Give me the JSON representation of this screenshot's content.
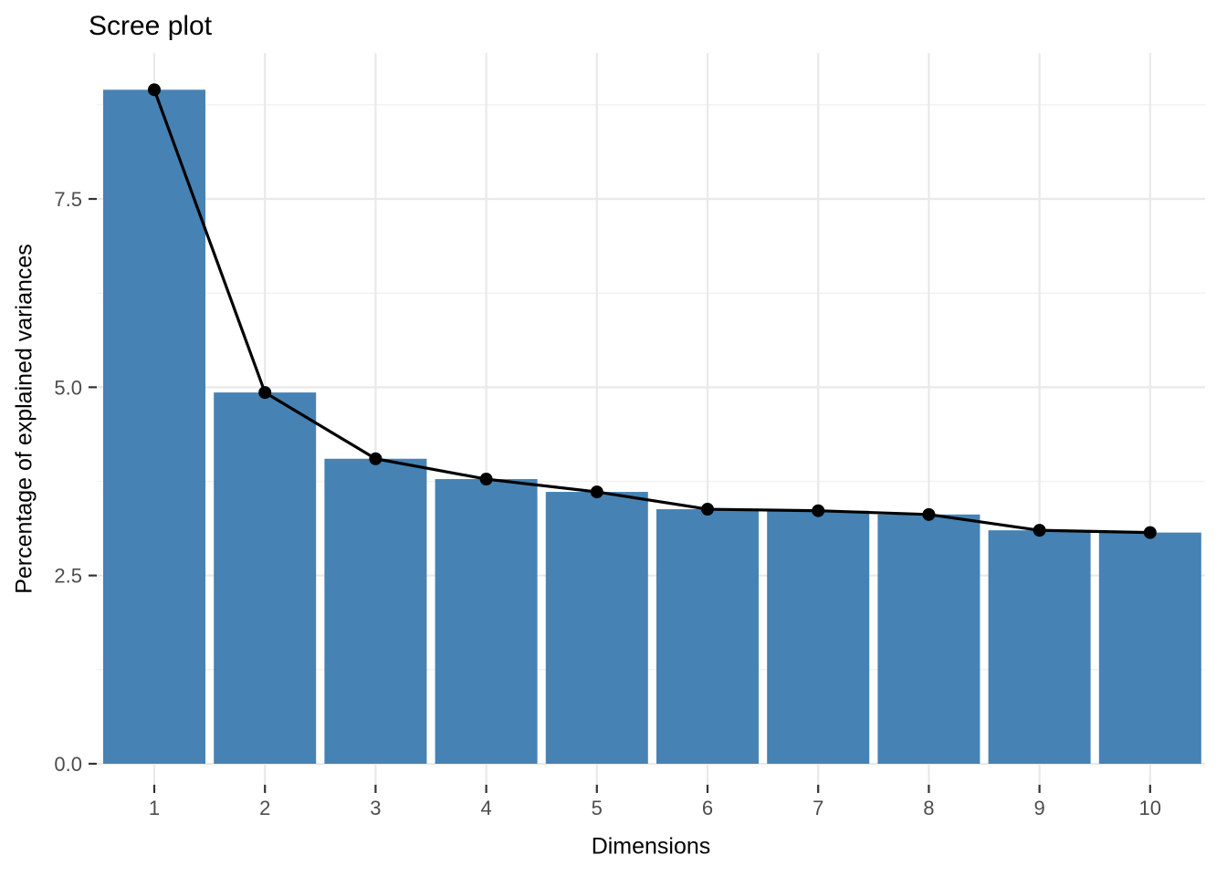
{
  "chart_data": {
    "type": "bar",
    "line_overlay": true,
    "title": "Scree plot",
    "xlabel": "Dimensions",
    "ylabel": "Percentage of explained variances",
    "categories": [
      "1",
      "2",
      "3",
      "4",
      "5",
      "6",
      "7",
      "8",
      "9",
      "10"
    ],
    "values": [
      8.95,
      4.93,
      4.05,
      3.78,
      3.61,
      3.38,
      3.36,
      3.31,
      3.1,
      3.07
    ],
    "series": [
      {
        "name": "percentage of explained variances (bars)",
        "values": [
          8.95,
          4.93,
          4.05,
          3.78,
          3.61,
          3.38,
          3.36,
          3.31,
          3.1,
          3.07
        ]
      },
      {
        "name": "percentage of explained variances (line)",
        "values": [
          8.95,
          4.93,
          4.05,
          3.78,
          3.61,
          3.38,
          3.36,
          3.31,
          3.1,
          3.07
        ]
      }
    ],
    "y_ticks": [
      {
        "value": 0.0,
        "label": "0.0"
      },
      {
        "value": 2.5,
        "label": "2.5"
      },
      {
        "value": 5.0,
        "label": "5.0"
      },
      {
        "value": 7.5,
        "label": "7.5"
      }
    ],
    "y_minor_gridlines": [
      1.25,
      3.75,
      6.25,
      8.75
    ],
    "ylim": [
      -0.28,
      9.44
    ],
    "grid": "on",
    "legend": "none",
    "colors": {
      "bar_fill": "#4682B4",
      "line": "#000000",
      "point": "#000000",
      "grid_major": "#E9E9E9",
      "grid_minor": "#F2F2F2",
      "tick_mark": "#333333",
      "tick_label": "#4D4D4D",
      "text": "#000000",
      "background": "#FFFFFF"
    }
  }
}
